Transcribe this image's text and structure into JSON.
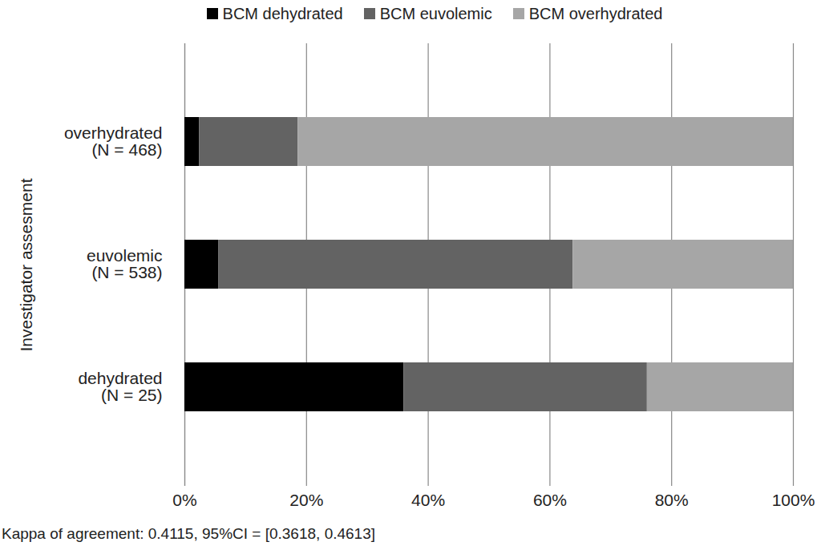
{
  "chart_data": {
    "type": "bar",
    "orientation": "horizontal",
    "stacked": true,
    "caption": "Kappa of agreement: 0.4115, 95%CI = [0.3618, 0.4613]",
    "y_label": "Investigator assesment",
    "categories": [
      "overhydrated\n(N = 468)",
      "euvolemic\n(N = 538)",
      "dehydrated\n(N = 25)"
    ],
    "series": [
      {
        "name": "BCM dehydrated",
        "color": "#000000",
        "values": [
          2.4,
          5.6,
          36
        ]
      },
      {
        "name": "BCM euvolemic",
        "color": "#636363",
        "values": [
          16.2,
          58.2,
          40
        ]
      },
      {
        "name": "BCM overhydrated",
        "color": "#a6a6a6",
        "values": [
          81.4,
          36.2,
          24
        ]
      }
    ],
    "xlim": [
      0,
      100
    ],
    "xticks": [
      {
        "value": 0,
        "label": "0%"
      },
      {
        "value": 20,
        "label": "20%"
      },
      {
        "value": 40,
        "label": "40%"
      },
      {
        "value": 60,
        "label": "60%"
      },
      {
        "value": 80,
        "label": "80%"
      },
      {
        "value": 100,
        "label": "100%"
      }
    ],
    "grid": true,
    "legend": "top"
  }
}
